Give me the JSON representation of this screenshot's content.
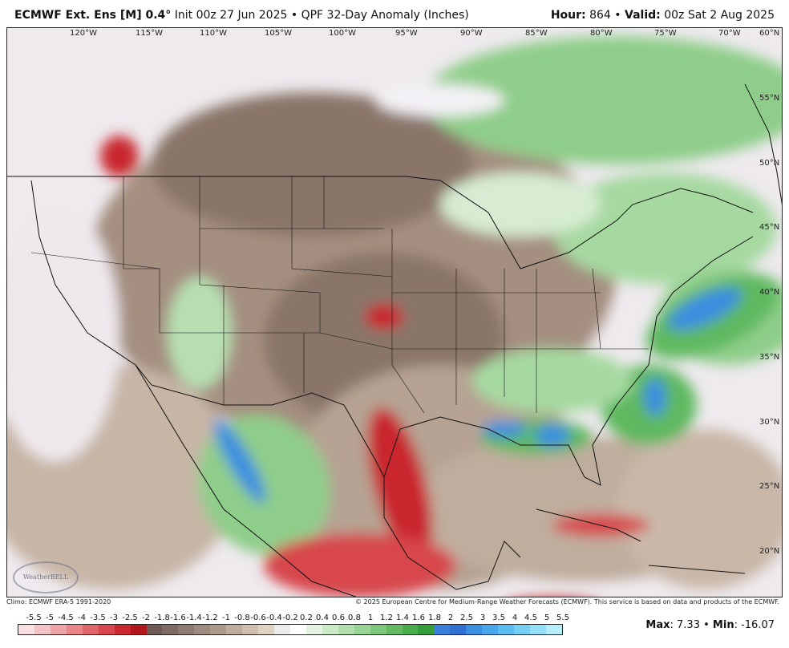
{
  "header": {
    "model": "ECMWF Ext. Ens [M] 0.4",
    "degree": "°",
    "init": "Init 00z 27 Jun 2025",
    "product": "QPF 32-Day Anomaly (Inches)",
    "hour_label": "Hour:",
    "hour_value": "864",
    "valid_label": "Valid:",
    "valid_value": "00z Sat 2 Aug 2025"
  },
  "longitude_labels": [
    "120°W",
    "115°W",
    "110°W",
    "105°W",
    "100°W",
    "95°W",
    "90°W",
    "85°W",
    "80°W",
    "75°W",
    "70°W"
  ],
  "latitude_labels": [
    "60°N",
    "55°N",
    "50°N",
    "45°N",
    "40°N",
    "35°N",
    "30°N",
    "25°N",
    "20°N"
  ],
  "footer": {
    "climo": "Climo: ECMWF ERA-5 1991-2020",
    "copyright": "© 2025 European Centre for Medium-Range Weather Forecasts (ECMWF). This service is based on data and products of the ECMWF."
  },
  "logo_text": "WeatherBELL",
  "scale": {
    "labels": [
      "-5.5",
      "-5",
      "-4.5",
      "-4",
      "-3.5",
      "-3",
      "-2.5",
      "-2",
      "-1.8",
      "-1.6",
      "-1.4",
      "-1.2",
      "-1",
      "-0.8",
      "-0.6",
      "-0.4",
      "-0.2",
      "0.2",
      "0.4",
      "0.6",
      "0.8",
      "1",
      "1.2",
      "1.4",
      "1.6",
      "1.8",
      "2",
      "2.5",
      "3",
      "3.5",
      "4",
      "4.5",
      "5",
      "5.5"
    ],
    "colors": [
      "#f9dfe0",
      "#f4c3c5",
      "#eea3a6",
      "#e98488",
      "#e06569",
      "#d7464c",
      "#c9282f",
      "#b2161d",
      "#6e5a55",
      "#7e6a62",
      "#8e7a70",
      "#9e8a7e",
      "#ae9a8c",
      "#bfac9c",
      "#d0bfaf",
      "#e0d3c4",
      "#ececec",
      "#ffffff",
      "#e4f3e2",
      "#cbe9c7",
      "#b2dfad",
      "#98d493",
      "#7ec77a",
      "#64ba63",
      "#4aad4c",
      "#339d3a",
      "#3c7fd8",
      "#2f6fd0",
      "#3a8ee0",
      "#4aa6ea",
      "#5cbdf0",
      "#76d0f5",
      "#93e0f8",
      "#b7eefb"
    ]
  },
  "stats": {
    "max_label": "Max",
    "max_value": ": 7.33",
    "sep": " • ",
    "min_label": "Min",
    "min_value": ": -16.07"
  }
}
